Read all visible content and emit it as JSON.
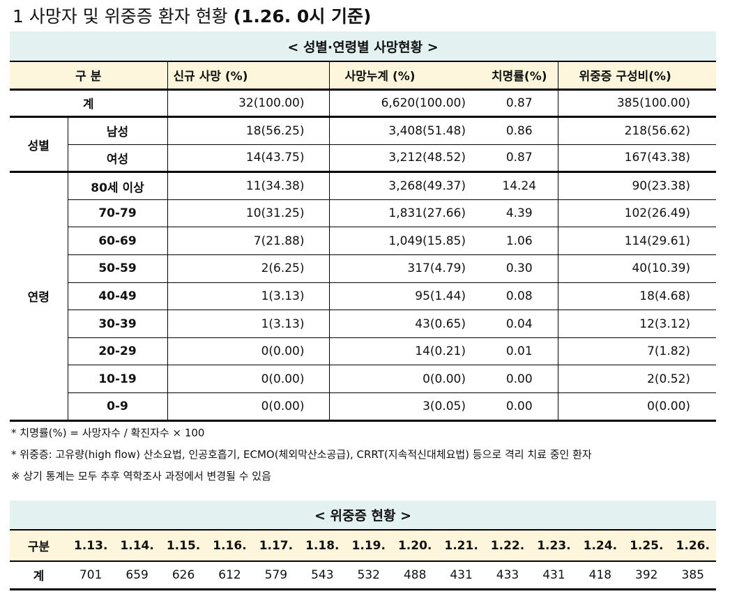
{
  "header": {
    "number": "1",
    "title": "사망자 및 위중증 환자 현황",
    "basis": "(1.26. 0시 기준)"
  },
  "deaths_table": {
    "caption": "< 성별·연령별 사망현황 >",
    "columns": [
      "구 분",
      "신규 사망 (%)",
      "사망누계 (%)",
      "치명률(%)",
      "위중증 구성비(%)"
    ],
    "total": {
      "label": "계",
      "cells": [
        "32(100.00)",
        "6,620(100.00)",
        "0.87",
        "385(100.00)"
      ]
    },
    "groups": [
      {
        "label": "성별",
        "rows": [
          {
            "label": "남성",
            "cells": [
              "18(56.25)",
              "3,408(51.48)",
              "0.86",
              "218(56.62)"
            ]
          },
          {
            "label": "여성",
            "cells": [
              "14(43.75)",
              "3,212(48.52)",
              "0.87",
              "167(43.38)"
            ]
          }
        ]
      },
      {
        "label": "연령",
        "rows": [
          {
            "label": "80세 이상",
            "cells": [
              "11(34.38)",
              "3,268(49.37)",
              "14.24",
              "90(23.38)"
            ]
          },
          {
            "label": "70-79",
            "cells": [
              "10(31.25)",
              "1,831(27.66)",
              "4.39",
              "102(26.49)"
            ]
          },
          {
            "label": "60-69",
            "cells": [
              "7(21.88)",
              "1,049(15.85)",
              "1.06",
              "114(29.61)"
            ]
          },
          {
            "label": "50-59",
            "cells": [
              "2(6.25)",
              "317(4.79)",
              "0.30",
              "40(10.39)"
            ]
          },
          {
            "label": "40-49",
            "cells": [
              "1(3.13)",
              "95(1.44)",
              "0.08",
              "18(4.68)"
            ]
          },
          {
            "label": "30-39",
            "cells": [
              "1(3.13)",
              "43(0.65)",
              "0.04",
              "12(3.12)"
            ]
          },
          {
            "label": "20-29",
            "cells": [
              "0(0.00)",
              "14(0.21)",
              "0.01",
              "7(1.82)"
            ]
          },
          {
            "label": "10-19",
            "cells": [
              "0(0.00)",
              "0(0.00)",
              "0.00",
              "2(0.52)"
            ]
          },
          {
            "label": "0-9",
            "cells": [
              "0(0.00)",
              "3(0.05)",
              "0.00",
              "0(0.00)"
            ]
          }
        ]
      }
    ]
  },
  "notes": [
    "* 치명률(%) = 사망자수 / 확진자수 × 100",
    "* 위중증: 고유량(high flow) 산소요법, 인공호흡기, ECMO(체외막산소공급), CRRT(지속적신대체요법) 등으로 격리 치료 중인 환자",
    "※ 상기 통계는 모두 추후 역학조사 과정에서 변경될 수 있음"
  ],
  "severe_table": {
    "caption": "< 위중증 현황 >",
    "header_label": "구분",
    "dates": [
      "1.13.",
      "1.14.",
      "1.15.",
      "1.16.",
      "1.17.",
      "1.18.",
      "1.19.",
      "1.20.",
      "1.21.",
      "1.22.",
      "1.23.",
      "1.24.",
      "1.25.",
      "1.26."
    ],
    "row_label": "계",
    "values": [
      "701",
      "659",
      "626",
      "612",
      "579",
      "543",
      "532",
      "488",
      "431",
      "433",
      "431",
      "418",
      "392",
      "385"
    ]
  }
}
